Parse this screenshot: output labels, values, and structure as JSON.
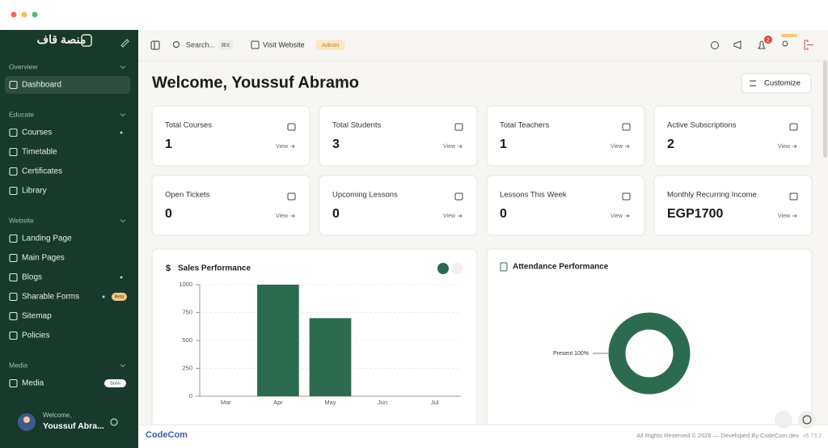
{
  "sidebar": {
    "logo": "منصة قاف",
    "sections": [
      {
        "title": "Overview",
        "items": [
          {
            "label": "Dashboard",
            "active": true
          }
        ]
      },
      {
        "title": "Educate",
        "items": [
          {
            "label": "Courses",
            "dot": true
          },
          {
            "label": "Timetable"
          },
          {
            "label": "Certificates"
          },
          {
            "label": "Library"
          }
        ]
      },
      {
        "title": "Website",
        "items": [
          {
            "label": "Landing Page"
          },
          {
            "label": "Main Pages"
          },
          {
            "label": "Blogs",
            "dot": true
          },
          {
            "label": "Sharable Forms",
            "dot": true,
            "badge": "Beta"
          },
          {
            "label": "Sitemap"
          },
          {
            "label": "Policies"
          }
        ]
      },
      {
        "title": "Media",
        "items": [
          {
            "label": "Media",
            "badge": "Soon"
          }
        ]
      }
    ],
    "user": {
      "greeting": "Welcome,",
      "name": "Youssuf Abra..."
    }
  },
  "topbar": {
    "search": "Search...",
    "shortcut": "⌘K",
    "visit": "Visit Website",
    "role": "Admin",
    "notifications": "2"
  },
  "header": {
    "title": "Welcome, Youssuf Abramo",
    "button": "Customize"
  },
  "stats": [
    {
      "label": "Total Courses",
      "value": 1,
      "link": "View"
    },
    {
      "label": "Total Students",
      "value": 3,
      "link": "View"
    },
    {
      "label": "Total Teachers",
      "value": 1,
      "link": "View"
    },
    {
      "label": "Active Subscriptions",
      "value": 2,
      "link": "View"
    },
    {
      "label": "Open Tickets",
      "value": 0,
      "link": "View"
    },
    {
      "label": "Upcoming Lessons",
      "value": 0,
      "link": "View"
    },
    {
      "label": "Lessons This Week",
      "value": 0,
      "link": "View"
    },
    {
      "label": "Monthly Recurring Income",
      "value": "EGP1700",
      "link": "View"
    }
  ],
  "sales_chart": {
    "type": "bar",
    "title": "Sales Performance",
    "categories": [
      "Mar",
      "Apr",
      "May",
      "Jun",
      "Jul"
    ],
    "values": [
      0,
      1000,
      700,
      0,
      0
    ],
    "ylim": [
      0,
      1000
    ],
    "yticks": [
      0,
      250,
      500,
      750,
      1000
    ],
    "color": "#2c6b50",
    "grid": true
  },
  "attendance_chart": {
    "type": "pie",
    "title": "Attendance Performance",
    "values": [
      100
    ],
    "value_labels": [
      "Present 100%"
    ],
    "color": "#2c6b50"
  },
  "footer": {
    "brand": "CodeCom",
    "copyright": "All Rights Reserved © 2026 — Developed By CodeCom.dev",
    "version": "v5.73.2"
  }
}
